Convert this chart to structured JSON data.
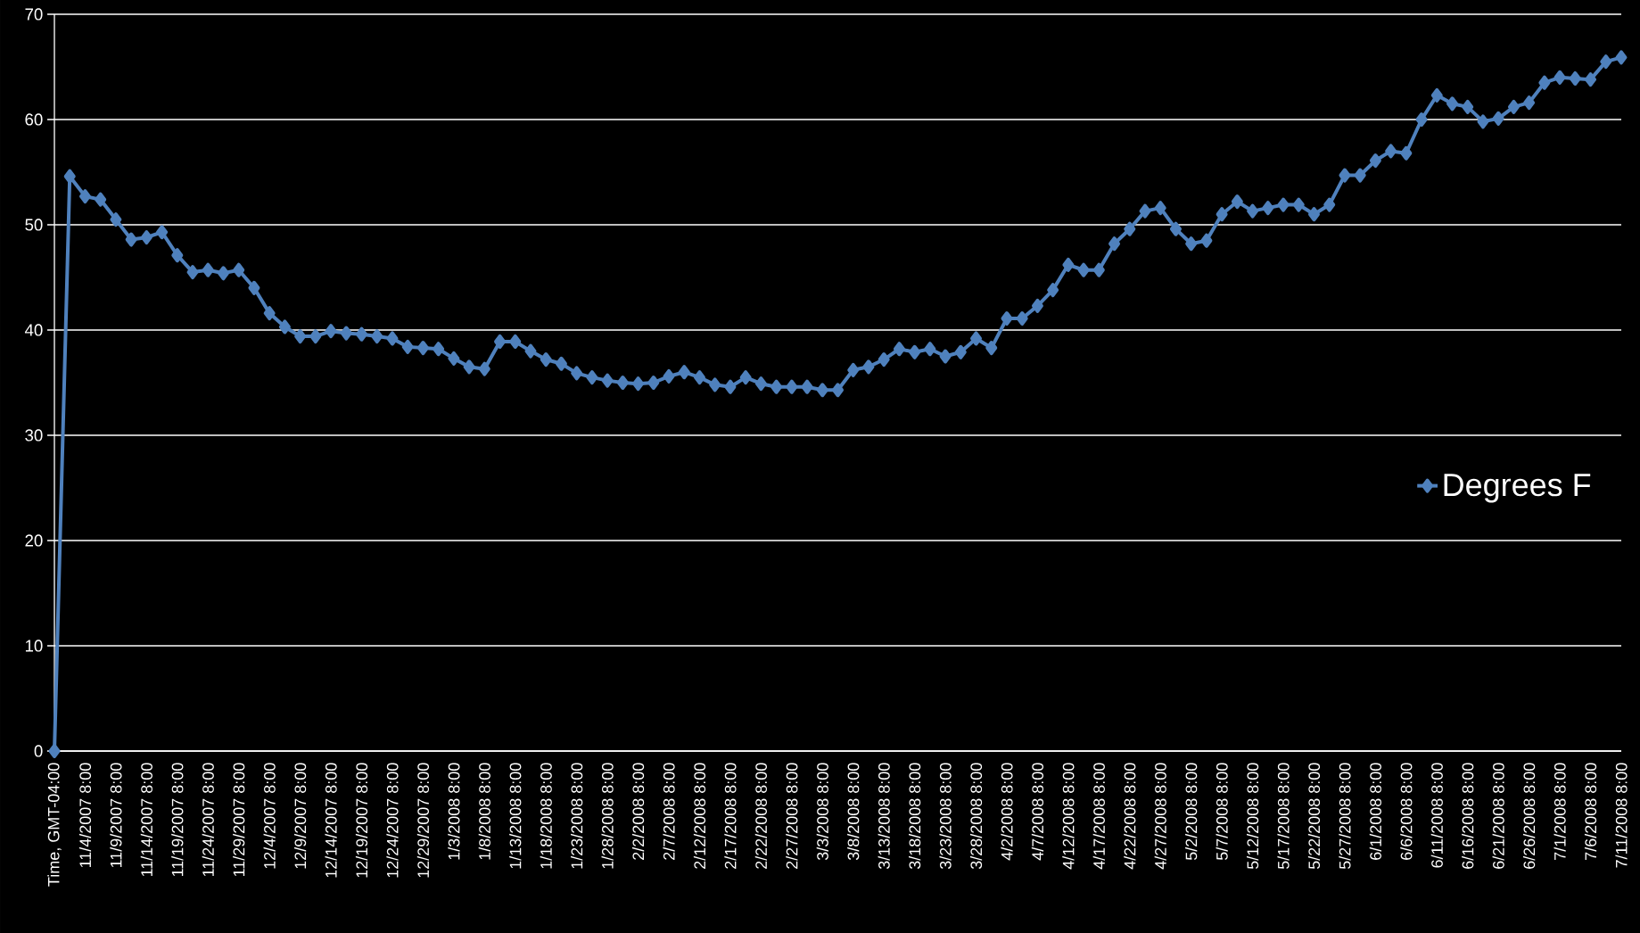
{
  "chart_data": {
    "type": "line",
    "categories": [
      "Time, GMT-04:00",
      null,
      "11/4/2007 8:00",
      null,
      "11/9/2007 8:00",
      null,
      "11/14/2007 8:00",
      null,
      "11/19/2007 8:00",
      null,
      "11/24/2007 8:00",
      null,
      "11/29/2007 8:00",
      null,
      "12/4/2007 8:00",
      null,
      "12/9/2007 8:00",
      null,
      "12/14/2007 8:00",
      null,
      "12/19/2007 8:00",
      null,
      "12/24/2007 8:00",
      null,
      "12/29/2007 8:00",
      null,
      "1/3/2008 8:00",
      null,
      "1/8/2008 8:00",
      null,
      "1/13/2008 8:00",
      null,
      "1/18/2008 8:00",
      null,
      "1/23/2008 8:00",
      null,
      "1/28/2008 8:00",
      null,
      "2/2/2008 8:00",
      null,
      "2/7/2008 8:00",
      null,
      "2/12/2008 8:00",
      null,
      "2/17/2008 8:00",
      null,
      "2/22/2008 8:00",
      null,
      "2/27/2008 8:00",
      null,
      "3/3/2008 8:00",
      null,
      "3/8/2008 8:00",
      null,
      "3/13/2008 8:00",
      null,
      "3/18/2008 8:00",
      null,
      "3/23/2008 8:00",
      null,
      "3/28/2008 8:00",
      null,
      "4/2/2008 8:00",
      null,
      "4/7/2008 8:00",
      null,
      "4/12/2008 8:00",
      null,
      "4/17/2008 8:00",
      null,
      "4/22/2008 8:00",
      null,
      "4/27/2008 8:00",
      null,
      "5/2/2008 8:00",
      null,
      "5/7/2008 8:00",
      null,
      "5/12/2008 8:00",
      null,
      "5/17/2008 8:00",
      null,
      "5/22/2008 8:00",
      null,
      "5/27/2008 8:00",
      null,
      "6/1/2008 8:00",
      null,
      "6/6/2008 8:00",
      null,
      "6/11/2008 8:00",
      null,
      "6/16/2008 8:00",
      null,
      "6/21/2008 8:00",
      null,
      "6/26/2008 8:00",
      null,
      "7/1/2008 8:00",
      null,
      "7/6/2008 8:00",
      null,
      "7/11/2008 8:00"
    ],
    "series": [
      {
        "name": "Degrees  F",
        "color": "#4f81bd",
        "values": [
          0,
          54.6,
          52.7,
          52.4,
          50.5,
          48.6,
          48.8,
          49.3,
          47.1,
          45.5,
          45.7,
          45.4,
          45.7,
          44.0,
          41.6,
          40.3,
          39.4,
          39.4,
          39.9,
          39.7,
          39.6,
          39.4,
          39.2,
          38.4,
          38.3,
          38.2,
          37.3,
          36.5,
          36.3,
          38.9,
          38.9,
          38.0,
          37.2,
          36.8,
          35.9,
          35.5,
          35.2,
          35.0,
          34.9,
          35.0,
          35.6,
          36.0,
          35.5,
          34.8,
          34.6,
          35.5,
          34.9,
          34.6,
          34.6,
          34.6,
          34.3,
          34.3,
          36.2,
          36.5,
          37.2,
          38.2,
          37.9,
          38.2,
          37.5,
          37.9,
          39.2,
          38.3,
          41.1,
          41.1,
          42.3,
          43.8,
          46.2,
          45.7,
          45.7,
          48.2,
          49.6,
          51.3,
          51.6,
          49.6,
          48.2,
          48.5,
          51.0,
          52.2,
          51.3,
          51.6,
          51.9,
          51.9,
          51.0,
          51.9,
          54.7,
          54.7,
          56.1,
          57.0,
          56.8,
          60.0,
          62.3,
          61.5,
          61.2,
          59.8,
          60.1,
          61.2,
          61.6,
          63.5,
          64.0,
          63.9,
          63.8,
          65.5,
          65.9
        ]
      }
    ],
    "ylim": [
      0,
      70
    ],
    "yticks": [
      0,
      10,
      20,
      30,
      40,
      50,
      60,
      70
    ],
    "grid": "y",
    "legend": "right",
    "marker": "diamond"
  }
}
